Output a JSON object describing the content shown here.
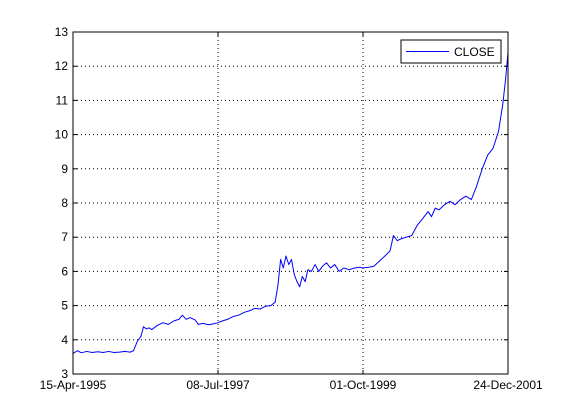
{
  "chart_data": {
    "type": "line",
    "title": "",
    "xlabel": "",
    "ylabel": "",
    "x_ticks": [
      "15-Apr-1995",
      "08-Jul-1997",
      "01-Oct-1999",
      "24-Dec-2001"
    ],
    "x_range": [
      "1995-04-15",
      "2001-12-24"
    ],
    "ylim": [
      3,
      13
    ],
    "y_ticks": [
      3,
      4,
      5,
      6,
      7,
      8,
      9,
      10,
      11,
      12,
      13
    ],
    "grid": true,
    "legend": "top-right",
    "series": [
      {
        "name": "CLOSE",
        "color": "#0000ff",
        "points": [
          [
            "1995-04-15",
            3.6
          ],
          [
            "1995-05-10",
            3.68
          ],
          [
            "1995-06-01",
            3.62
          ],
          [
            "1995-07-01",
            3.66
          ],
          [
            "1995-08-01",
            3.63
          ],
          [
            "1995-09-01",
            3.65
          ],
          [
            "1995-10-01",
            3.63
          ],
          [
            "1995-11-01",
            3.66
          ],
          [
            "1995-12-01",
            3.63
          ],
          [
            "1996-01-01",
            3.64
          ],
          [
            "1996-02-01",
            3.66
          ],
          [
            "1996-03-01",
            3.64
          ],
          [
            "1996-03-20",
            3.68
          ],
          [
            "1996-04-10",
            3.95
          ],
          [
            "1996-05-01",
            4.1
          ],
          [
            "1996-05-15",
            4.38
          ],
          [
            "1996-06-01",
            4.32
          ],
          [
            "1996-06-15",
            4.35
          ],
          [
            "1996-07-01",
            4.3
          ],
          [
            "1996-08-01",
            4.42
          ],
          [
            "1996-09-01",
            4.5
          ],
          [
            "1996-10-01",
            4.45
          ],
          [
            "1996-11-01",
            4.55
          ],
          [
            "1996-12-01",
            4.6
          ],
          [
            "1996-12-20",
            4.72
          ],
          [
            "1997-01-10",
            4.6
          ],
          [
            "1997-02-01",
            4.65
          ],
          [
            "1997-03-01",
            4.58
          ],
          [
            "1997-03-20",
            4.45
          ],
          [
            "1997-04-15",
            4.48
          ],
          [
            "1997-05-15",
            4.44
          ],
          [
            "1997-06-15",
            4.47
          ],
          [
            "1997-07-08",
            4.5
          ],
          [
            "1997-08-01",
            4.55
          ],
          [
            "1997-09-01",
            4.6
          ],
          [
            "1997-10-01",
            4.68
          ],
          [
            "1997-11-01",
            4.72
          ],
          [
            "1997-12-01",
            4.8
          ],
          [
            "1998-01-01",
            4.85
          ],
          [
            "1998-02-01",
            4.92
          ],
          [
            "1998-03-01",
            4.9
          ],
          [
            "1998-04-01",
            4.98
          ],
          [
            "1998-05-01",
            5.0
          ],
          [
            "1998-05-25",
            5.1
          ],
          [
            "1998-06-10",
            5.6
          ],
          [
            "1998-06-25",
            6.35
          ],
          [
            "1998-07-10",
            6.1
          ],
          [
            "1998-07-25",
            6.45
          ],
          [
            "1998-08-10",
            6.2
          ],
          [
            "1998-08-25",
            6.35
          ],
          [
            "1998-09-10",
            5.9
          ],
          [
            "1998-09-25",
            5.7
          ],
          [
            "1998-10-10",
            5.55
          ],
          [
            "1998-10-25",
            5.85
          ],
          [
            "1998-11-10",
            5.7
          ],
          [
            "1998-11-25",
            6.05
          ],
          [
            "1998-12-15",
            6.0
          ],
          [
            "1999-01-05",
            6.2
          ],
          [
            "1999-01-25",
            6.0
          ],
          [
            "1999-02-15",
            6.15
          ],
          [
            "1999-03-10",
            6.25
          ],
          [
            "1999-04-01",
            6.1
          ],
          [
            "1999-04-25",
            6.2
          ],
          [
            "1999-05-20",
            6.0
          ],
          [
            "1999-06-15",
            6.1
          ],
          [
            "1999-07-15",
            6.05
          ],
          [
            "1999-08-15",
            6.1
          ],
          [
            "1999-09-15",
            6.12
          ],
          [
            "1999-10-01",
            6.1
          ],
          [
            "1999-11-01",
            6.12
          ],
          [
            "1999-12-01",
            6.15
          ],
          [
            "2000-01-01",
            6.3
          ],
          [
            "2000-02-01",
            6.45
          ],
          [
            "2000-03-01",
            6.6
          ],
          [
            "2000-03-20",
            7.05
          ],
          [
            "2000-04-10",
            6.9
          ],
          [
            "2000-05-01",
            6.95
          ],
          [
            "2000-06-01",
            7.0
          ],
          [
            "2000-07-01",
            7.05
          ],
          [
            "2000-08-01",
            7.35
          ],
          [
            "2000-09-01",
            7.55
          ],
          [
            "2000-10-01",
            7.75
          ],
          [
            "2000-10-20",
            7.6
          ],
          [
            "2000-11-10",
            7.85
          ],
          [
            "2000-12-01",
            7.8
          ],
          [
            "2001-01-01",
            7.95
          ],
          [
            "2001-02-01",
            8.05
          ],
          [
            "2001-03-01",
            7.95
          ],
          [
            "2001-04-01",
            8.1
          ],
          [
            "2001-05-01",
            8.2
          ],
          [
            "2001-06-01",
            8.1
          ],
          [
            "2001-07-01",
            8.5
          ],
          [
            "2001-08-01",
            9.0
          ],
          [
            "2001-09-01",
            9.4
          ],
          [
            "2001-10-01",
            9.6
          ],
          [
            "2001-11-01",
            10.1
          ],
          [
            "2001-11-25",
            10.9
          ],
          [
            "2001-12-10",
            11.6
          ],
          [
            "2001-12-24",
            12.4
          ]
        ]
      }
    ]
  }
}
